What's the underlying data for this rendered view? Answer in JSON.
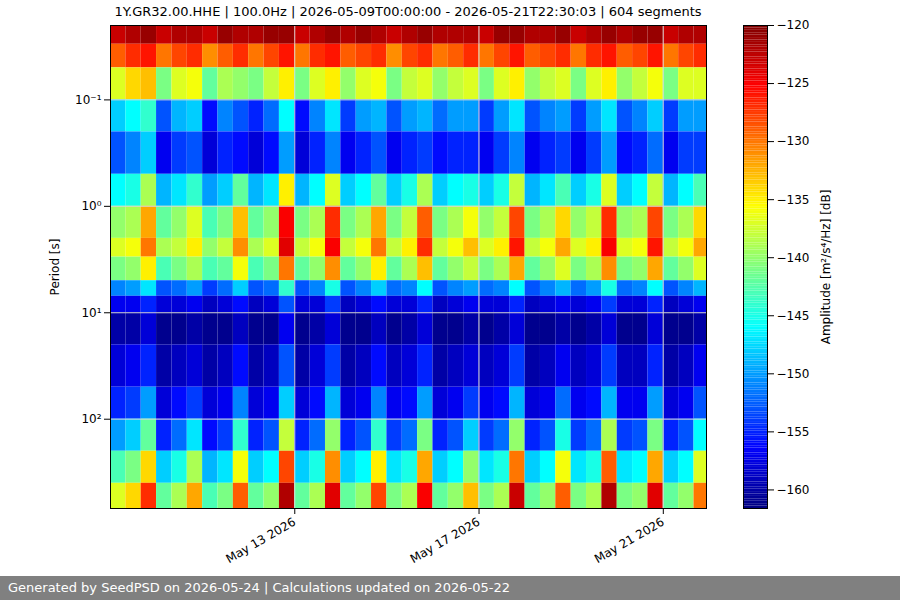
{
  "chart_data": {
    "type": "heatmap",
    "title": "1Y.GR32.00.HHE | 100.0Hz | 2026-05-09T00:00:00 - 2026-05-21T22:30:03 | 604 segments",
    "caption": "Generated by SeedPSD on 2026-05-24 | Calculations updated on 2026-05-22",
    "ylabel": "Period [s]",
    "log": "y",
    "grid": true,
    "xlim": [
      "2026-05-09T00:00:00",
      "2026-05-21T22:30:03"
    ],
    "xticks": [
      {
        "value": "2026-05-13",
        "label": "May 13 2026"
      },
      {
        "value": "2026-05-17",
        "label": "May 17 2026"
      },
      {
        "value": "2026-05-21",
        "label": "May 21 2026"
      }
    ],
    "ylim": [
      0.02,
      690
    ],
    "yticks": [
      {
        "value": 0.1,
        "label": "10⁻¹"
      },
      {
        "value": 1,
        "label": "10⁰"
      },
      {
        "value": 10,
        "label": "10¹"
      },
      {
        "value": 100,
        "label": "10²"
      }
    ],
    "x": [
      "2026-05-09T00:00",
      "2026-05-09T08:00",
      "2026-05-09T16:00",
      "2026-05-10T00:00",
      "2026-05-10T08:00",
      "2026-05-10T16:00",
      "2026-05-11T00:00",
      "2026-05-11T08:00",
      "2026-05-11T16:00",
      "2026-05-12T00:00",
      "2026-05-12T08:00",
      "2026-05-12T16:00",
      "2026-05-13T00:00",
      "2026-05-13T08:00",
      "2026-05-13T16:00",
      "2026-05-14T00:00",
      "2026-05-14T08:00",
      "2026-05-14T16:00",
      "2026-05-15T00:00",
      "2026-05-15T08:00",
      "2026-05-15T16:00",
      "2026-05-16T00:00",
      "2026-05-16T08:00",
      "2026-05-16T16:00",
      "2026-05-17T00:00",
      "2026-05-17T08:00",
      "2026-05-17T16:00",
      "2026-05-18T00:00",
      "2026-05-18T08:00",
      "2026-05-18T16:00",
      "2026-05-19T00:00",
      "2026-05-19T08:00",
      "2026-05-19T16:00",
      "2026-05-20T00:00",
      "2026-05-20T08:00",
      "2026-05-20T16:00",
      "2026-05-21T00:00",
      "2026-05-21T08:00",
      "2026-05-21T16:00",
      "2026-05-22T00:00"
    ],
    "y": [
      0.02,
      0.03,
      0.05,
      0.1,
      0.2,
      0.5,
      1,
      2,
      3,
      5,
      7,
      10,
      20,
      50,
      100,
      200,
      400,
      690
    ],
    "z": [
      [
        -123,
        -122,
        -121,
        -123,
        -122,
        -122,
        -123,
        -121,
        -122,
        -122,
        -121,
        -121,
        -123,
        -122,
        -121,
        -122,
        -121,
        -122,
        -123,
        -122,
        -121,
        -122,
        -122,
        -122,
        -123,
        -121,
        -121,
        -122,
        -122,
        -121,
        -123,
        -122,
        -121,
        -122,
        -121,
        -121,
        -123,
        -122,
        -122
      ],
      [
        -129,
        -127,
        -126,
        -130,
        -128,
        -127,
        -131,
        -129,
        -127,
        -130,
        -128,
        -126,
        -130,
        -127,
        -126,
        -129,
        -128,
        -127,
        -131,
        -128,
        -127,
        -130,
        -129,
        -127,
        -130,
        -128,
        -126,
        -129,
        -128,
        -127,
        -130,
        -127,
        -126,
        -129,
        -128,
        -126,
        -130,
        -128,
        -127
      ],
      [
        -137,
        -134,
        -133,
        -141,
        -137,
        -136,
        -142,
        -139,
        -140,
        -141,
        -138,
        -135,
        -141,
        -137,
        -135,
        -140,
        -137,
        -136,
        -141,
        -138,
        -137,
        -140,
        -138,
        -137,
        -141,
        -137,
        -135,
        -140,
        -138,
        -137,
        -141,
        -137,
        -135,
        -140,
        -138,
        -136,
        -141,
        -137,
        -137
      ],
      [
        -148,
        -146,
        -144,
        -153,
        -149,
        -148,
        -156,
        -151,
        -153,
        -155,
        -152,
        -146,
        -156,
        -151,
        -147,
        -154,
        -150,
        -149,
        -153,
        -150,
        -149,
        -152,
        -150,
        -150,
        -154,
        -150,
        -147,
        -153,
        -151,
        -150,
        -154,
        -150,
        -147,
        -153,
        -151,
        -148,
        -154,
        -150,
        -150
      ],
      [
        -153,
        -151,
        -148,
        -157,
        -154,
        -153,
        -158,
        -155,
        -156,
        -158,
        -156,
        -150,
        -158,
        -155,
        -151,
        -157,
        -155,
        -153,
        -157,
        -155,
        -154,
        -156,
        -155,
        -155,
        -157,
        -154,
        -151,
        -157,
        -155,
        -154,
        -157,
        -154,
        -150,
        -156,
        -155,
        -152,
        -157,
        -154,
        -154
      ],
      [
        -146,
        -145,
        -139,
        -149,
        -147,
        -144,
        -150,
        -148,
        -142,
        -149,
        -147,
        -135,
        -149,
        -146,
        -137,
        -148,
        -146,
        -142,
        -148,
        -145,
        -139,
        -148,
        -146,
        -145,
        -148,
        -145,
        -138,
        -149,
        -147,
        -143,
        -148,
        -145,
        -137,
        -148,
        -146,
        -138,
        -149,
        -146,
        -143
      ],
      [
        -140,
        -139,
        -132,
        -142,
        -140,
        -137,
        -143,
        -141,
        -133,
        -142,
        -140,
        -125,
        -141,
        -139,
        -127,
        -141,
        -139,
        -132,
        -141,
        -138,
        -129,
        -141,
        -139,
        -136,
        -140,
        -138,
        -128,
        -141,
        -139,
        -134,
        -140,
        -138,
        -127,
        -140,
        -139,
        -128,
        -141,
        -139,
        -134
      ],
      [
        -137,
        -136,
        -130,
        -139,
        -138,
        -135,
        -140,
        -138,
        -131,
        -139,
        -137,
        -124,
        -138,
        -136,
        -125,
        -138,
        -136,
        -130,
        -138,
        -135,
        -127,
        -138,
        -136,
        -133,
        -137,
        -135,
        -126,
        -138,
        -136,
        -132,
        -137,
        -135,
        -125,
        -137,
        -136,
        -126,
        -138,
        -136,
        -132
      ],
      [
        -141,
        -140,
        -135,
        -143,
        -141,
        -139,
        -143,
        -142,
        -136,
        -143,
        -141,
        -130,
        -142,
        -140,
        -131,
        -142,
        -140,
        -135,
        -142,
        -139,
        -133,
        -142,
        -140,
        -138,
        -141,
        -139,
        -132,
        -142,
        -140,
        -137,
        -141,
        -139,
        -131,
        -141,
        -140,
        -132,
        -142,
        -140,
        -137
      ],
      [
        -151,
        -150,
        -147,
        -153,
        -152,
        -150,
        -154,
        -152,
        -148,
        -153,
        -152,
        -144,
        -153,
        -151,
        -145,
        -153,
        -151,
        -148,
        -152,
        -151,
        -146,
        -153,
        -151,
        -150,
        -152,
        -151,
        -146,
        -153,
        -151,
        -149,
        -152,
        -150,
        -145,
        -152,
        -151,
        -146,
        -153,
        -151,
        -149
      ],
      [
        -157,
        -157,
        -155,
        -158,
        -158,
        -157,
        -159,
        -158,
        -156,
        -159,
        -158,
        -153,
        -158,
        -158,
        -154,
        -159,
        -158,
        -156,
        -158,
        -158,
        -155,
        -159,
        -158,
        -157,
        -158,
        -158,
        -155,
        -159,
        -158,
        -157,
        -158,
        -157,
        -154,
        -158,
        -158,
        -155,
        -159,
        -158,
        -157
      ],
      [
        -160,
        -160,
        -158,
        -161,
        -161,
        -160,
        -161,
        -161,
        -159,
        -161,
        -161,
        -157,
        -161,
        -160,
        -158,
        -161,
        -161,
        -159,
        -161,
        -160,
        -158,
        -161,
        -161,
        -160,
        -161,
        -160,
        -158,
        -161,
        -161,
        -160,
        -161,
        -160,
        -158,
        -161,
        -161,
        -158,
        -161,
        -161,
        -160
      ],
      [
        -158,
        -157,
        -155,
        -160,
        -159,
        -158,
        -160,
        -159,
        -156,
        -160,
        -159,
        -153,
        -160,
        -158,
        -154,
        -160,
        -159,
        -156,
        -159,
        -158,
        -155,
        -160,
        -159,
        -158,
        -159,
        -158,
        -154,
        -160,
        -159,
        -157,
        -159,
        -158,
        -154,
        -159,
        -159,
        -155,
        -160,
        -159,
        -157
      ],
      [
        -155,
        -154,
        -150,
        -158,
        -156,
        -154,
        -158,
        -157,
        -151,
        -158,
        -157,
        -148,
        -158,
        -156,
        -149,
        -158,
        -157,
        -151,
        -157,
        -156,
        -150,
        -158,
        -157,
        -154,
        -157,
        -156,
        -149,
        -158,
        -157,
        -152,
        -157,
        -156,
        -149,
        -157,
        -157,
        -150,
        -158,
        -157,
        -153
      ],
      [
        -150,
        -148,
        -142,
        -155,
        -152,
        -147,
        -156,
        -154,
        -144,
        -155,
        -153,
        -138,
        -155,
        -152,
        -140,
        -155,
        -153,
        -144,
        -154,
        -152,
        -141,
        -155,
        -153,
        -148,
        -154,
        -152,
        -140,
        -155,
        -153,
        -145,
        -154,
        -152,
        -139,
        -154,
        -153,
        -141,
        -155,
        -153,
        -146
      ],
      [
        -143,
        -141,
        -134,
        -148,
        -145,
        -139,
        -149,
        -147,
        -136,
        -148,
        -146,
        -128,
        -148,
        -145,
        -131,
        -148,
        -146,
        -135,
        -147,
        -145,
        -132,
        -148,
        -146,
        -140,
        -147,
        -145,
        -130,
        -148,
        -146,
        -136,
        -147,
        -145,
        -129,
        -147,
        -146,
        -132,
        -148,
        -146,
        -137
      ],
      [
        -137,
        -134,
        -127,
        -142,
        -139,
        -132,
        -143,
        -141,
        -129,
        -142,
        -140,
        -122,
        -142,
        -139,
        -124,
        -142,
        -140,
        -128,
        -141,
        -139,
        -125,
        -142,
        -140,
        -133,
        -141,
        -139,
        -123,
        -142,
        -140,
        -129,
        -141,
        -139,
        -122,
        -141,
        -140,
        -124,
        -142,
        -140,
        -130
      ]
    ],
    "colorbar": {
      "label": "Amplitude [m²/s⁴/Hz] [dB]",
      "range": [
        -161.6,
        -120
      ],
      "ticks": [
        -120,
        -125,
        -130,
        -135,
        -140,
        -145,
        -150,
        -155,
        -160
      ]
    }
  }
}
